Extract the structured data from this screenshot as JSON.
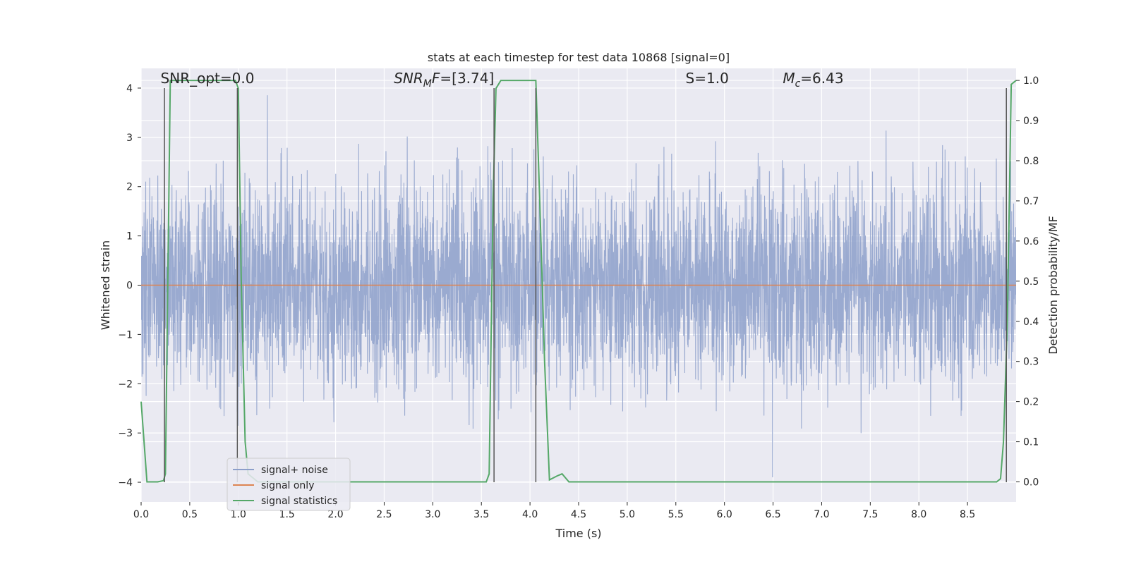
{
  "chart_data": {
    "type": "line",
    "title": "stats at each timestep for test data 10868 [signal=0]",
    "xlabel": "Time (s)",
    "ylabel_left": "Whitened strain",
    "ylabel_right": "Detection probability/MF",
    "xlim": [
      0.0,
      9.0
    ],
    "ylim_left": [
      -4.4,
      4.4
    ],
    "ylim_right": [
      -0.05,
      1.03
    ],
    "xticks": [
      "0.0",
      "0.5",
      "1.0",
      "1.5",
      "2.0",
      "2.5",
      "3.0",
      "3.5",
      "4.0",
      "4.5",
      "5.0",
      "5.5",
      "6.0",
      "6.5",
      "7.0",
      "7.5",
      "8.0",
      "8.5"
    ],
    "xtick_values": [
      0.0,
      0.5,
      1.0,
      1.5,
      2.0,
      2.5,
      3.0,
      3.5,
      4.0,
      4.5,
      5.0,
      5.5,
      6.0,
      6.5,
      7.0,
      7.5,
      8.0,
      8.5
    ],
    "yticks_left": [
      "−4",
      "−3",
      "−2",
      "−1",
      "0",
      "1",
      "2",
      "3",
      "4"
    ],
    "ytick_values_left": [
      -4,
      -3,
      -2,
      -1,
      0,
      1,
      2,
      3,
      4
    ],
    "yticks_right": [
      "0.0",
      "0.1",
      "0.2",
      "0.3",
      "0.4",
      "0.5",
      "0.6",
      "0.7",
      "0.8",
      "0.9",
      "1.0"
    ],
    "ytick_values_right": [
      0.0,
      0.1,
      0.2,
      0.3,
      0.4,
      0.5,
      0.6,
      0.7,
      0.8,
      0.9,
      1.0
    ],
    "grid": true,
    "legend_position": "bottom-left",
    "annotations": [
      {
        "text": "SNR_opt=0.0",
        "x": 0.2,
        "y": 4.1
      },
      {
        "text": "SNR_MF=[3.74]",
        "x": 2.6,
        "y": 4.1
      },
      {
        "text": "S=1.0",
        "x": 5.6,
        "y": 4.1
      },
      {
        "text": "M_c=6.43",
        "x": 6.6,
        "y": 4.1
      }
    ],
    "series": [
      {
        "name": "signal+ noise",
        "axis": "left",
        "color": "#8c9fca",
        "kind": "noise",
        "amplitude_core": 1.6,
        "amplitude_peaks": [
          3.5,
          -3.2
        ],
        "x_range": [
          0.0,
          9.0
        ]
      },
      {
        "name": "signal only",
        "axis": "left",
        "color": "#dd8452",
        "x": [
          0.0,
          9.0
        ],
        "y": [
          0.0,
          0.0
        ]
      },
      {
        "name": "signal statistics",
        "axis": "right",
        "color": "#55a868",
        "x": [
          0.0,
          0.03,
          0.06,
          0.1,
          0.17,
          0.23,
          0.25,
          0.3,
          0.97,
          1.0,
          1.03,
          1.07,
          1.1,
          1.2,
          2.0,
          3.0,
          3.55,
          3.58,
          3.62,
          3.65,
          3.7,
          4.06,
          4.1,
          4.15,
          4.2,
          4.28,
          4.33,
          4.4,
          5.0,
          6.0,
          7.0,
          8.0,
          8.8,
          8.84,
          8.87,
          8.91,
          8.95,
          9.0
        ],
        "y": [
          0.2,
          0.1,
          0.0,
          0.0,
          0.0,
          0.003,
          0.02,
          1.0,
          1.0,
          0.98,
          0.5,
          0.1,
          0.02,
          0.0,
          0.0,
          0.0,
          0.0,
          0.02,
          0.7,
          0.98,
          1.0,
          1.0,
          0.7,
          0.3,
          0.005,
          0.015,
          0.02,
          0.0,
          0.0,
          0.0,
          0.0,
          0.0,
          0.0,
          0.008,
          0.1,
          0.4,
          0.99,
          1.0
        ]
      }
    ],
    "vertical_markers": [
      0.24,
      0.99,
      3.63,
      4.06,
      8.9
    ],
    "vertical_marker_color": "#555555"
  }
}
